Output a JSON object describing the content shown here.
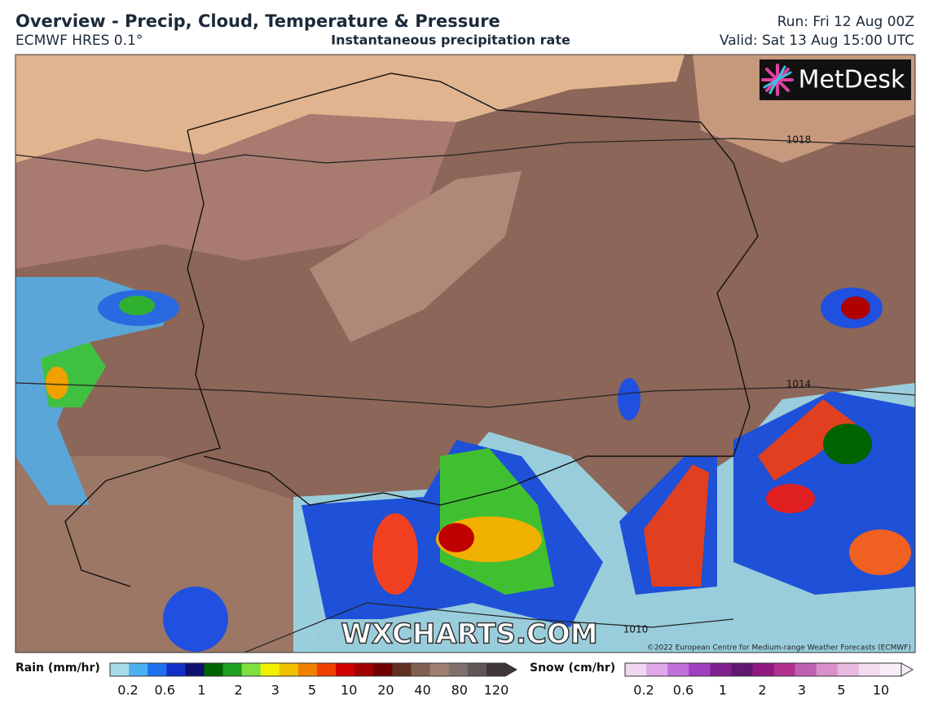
{
  "header": {
    "title": "Overview - Precip, Cloud, Temperature & Pressure",
    "model": "ECMWF HRES 0.1°",
    "subtitle": "Instantaneous precipitation rate",
    "run": "Run: Fri 12 Aug 00Z",
    "valid": "Valid: Sat 13 Aug 15:00 UTC"
  },
  "map": {
    "logo": "MetDesk",
    "watermark": "WXCHARTS.COM",
    "copyright": "©2022 European Centre for Medium-range Weather Forecasts (ECMWF)",
    "isobars": [
      "1018",
      "1014",
      "1010"
    ]
  },
  "legend": {
    "rain_label": "Rain (mm/hr)",
    "rain_ticks": [
      "0.2",
      "0.6",
      "1",
      "2",
      "3",
      "5",
      "10",
      "20",
      "40",
      "80",
      "120"
    ],
    "snow_label": "Snow (cm/hr)",
    "snow_ticks": [
      "0.2",
      "0.6",
      "1",
      "2",
      "3",
      "5",
      "10"
    ]
  }
}
